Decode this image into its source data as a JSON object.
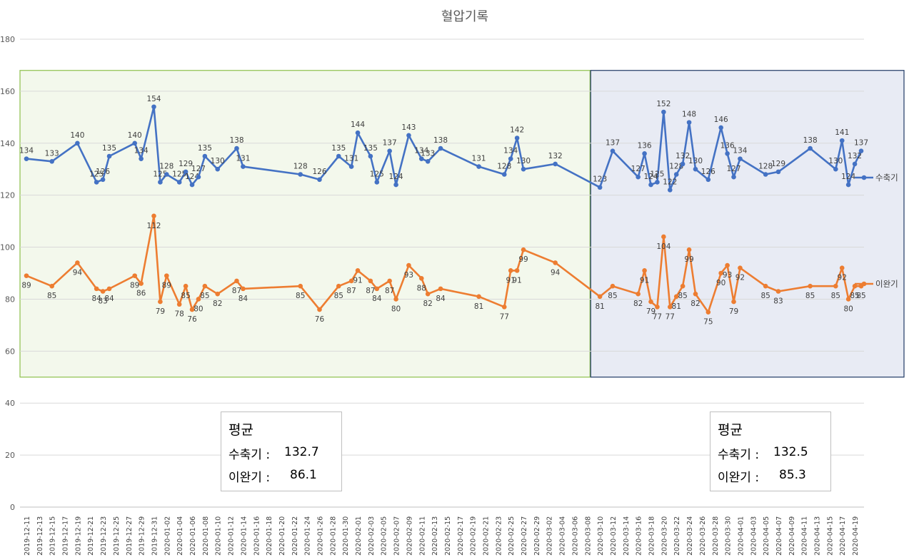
{
  "chart_data": {
    "type": "line",
    "title": "혈압기록",
    "ylim": [
      0,
      180
    ],
    "yticks": [
      0,
      20,
      40,
      60,
      80,
      100,
      120,
      140,
      160,
      180
    ],
    "x_start": "2019-12-11",
    "x_end": "2020-04-20",
    "x_tick_labels": [
      "2019-12-11",
      "2019-12-13",
      "2019-12-15",
      "2019-12-17",
      "2019-12-19",
      "2019-12-21",
      "2019-12-23",
      "2019-12-25",
      "2019-12-27",
      "2019-12-29",
      "2019-12-31",
      "2020-01-02",
      "2020-01-04",
      "2020-01-06",
      "2020-01-08",
      "2020-01-10",
      "2020-01-12",
      "2020-01-14",
      "2020-01-16",
      "2020-01-18",
      "2020-01-20",
      "2020-01-22",
      "2020-01-24",
      "2020-01-26",
      "2020-01-28",
      "2020-01-30",
      "2020-02-01",
      "2020-02-03",
      "2020-02-05",
      "2020-02-07",
      "2020-02-09",
      "2020-02-11",
      "2020-02-13",
      "2020-02-15",
      "2020-02-17",
      "2020-02-19",
      "2020-02-21",
      "2020-02-23",
      "2020-02-25",
      "2020-02-27",
      "2020-02-29",
      "2020-03-02",
      "2020-03-04",
      "2020-03-06",
      "2020-03-08",
      "2020-03-10",
      "2020-03-12",
      "2020-03-14",
      "2020-03-16",
      "2020-03-18",
      "2020-03-20",
      "2020-03-22",
      "2020-03-24",
      "2020-03-26",
      "2020-03-28",
      "2020-03-30",
      "2020-04-01",
      "2020-04-03",
      "2020-04-05",
      "2020-04-07",
      "2020-04-09",
      "2020-04-11",
      "2020-04-13",
      "2020-04-15",
      "2020-04-17",
      "2020-04-19"
    ],
    "legend_position": "right",
    "grid": true,
    "series": [
      {
        "name": "수축기",
        "color": "#4472C4",
        "points": [
          [
            "2019-12-11",
            134
          ],
          [
            "2019-12-15",
            133
          ],
          [
            "2019-12-19",
            140
          ],
          [
            "2019-12-22",
            125
          ],
          [
            "2019-12-23",
            126
          ],
          [
            "2019-12-24",
            135
          ],
          [
            "2019-12-28",
            140
          ],
          [
            "2019-12-29",
            134
          ],
          [
            "2019-12-31",
            154
          ],
          [
            "2020-01-01",
            125
          ],
          [
            "2020-01-02",
            128
          ],
          [
            "2020-01-04",
            125
          ],
          [
            "2020-01-05",
            129
          ],
          [
            "2020-01-06",
            124
          ],
          [
            "2020-01-07",
            127
          ],
          [
            "2020-01-08",
            135
          ],
          [
            "2020-01-10",
            130
          ],
          [
            "2020-01-13",
            138
          ],
          [
            "2020-01-14",
            131
          ],
          [
            "2020-01-23",
            128
          ],
          [
            "2020-01-26",
            126
          ],
          [
            "2020-01-29",
            135
          ],
          [
            "2020-01-31",
            131
          ],
          [
            "2020-02-01",
            144
          ],
          [
            "2020-02-03",
            135
          ],
          [
            "2020-02-04",
            125
          ],
          [
            "2020-02-06",
            137
          ],
          [
            "2020-02-07",
            124
          ],
          [
            "2020-02-09",
            143
          ],
          [
            "2020-02-11",
            134
          ],
          [
            "2020-02-12",
            133
          ],
          [
            "2020-02-14",
            138
          ],
          [
            "2020-02-20",
            131
          ],
          [
            "2020-02-24",
            128
          ],
          [
            "2020-02-25",
            134
          ],
          [
            "2020-02-26",
            142
          ],
          [
            "2020-02-27",
            130
          ],
          [
            "2020-03-03",
            132
          ],
          [
            "2020-03-10",
            123
          ],
          [
            "2020-03-12",
            137
          ],
          [
            "2020-03-16",
            127
          ],
          [
            "2020-03-17",
            136
          ],
          [
            "2020-03-18",
            124
          ],
          [
            "2020-03-19",
            125
          ],
          [
            "2020-03-20",
            152
          ],
          [
            "2020-03-21",
            122
          ],
          [
            "2020-03-22",
            128
          ],
          [
            "2020-03-23",
            132
          ],
          [
            "2020-03-24",
            148
          ],
          [
            "2020-03-25",
            130
          ],
          [
            "2020-03-27",
            126
          ],
          [
            "2020-03-29",
            146
          ],
          [
            "2020-03-30",
            136
          ],
          [
            "2020-03-31",
            127
          ],
          [
            "2020-04-01",
            134
          ],
          [
            "2020-04-05",
            128
          ],
          [
            "2020-04-07",
            129
          ],
          [
            "2020-04-12",
            138
          ],
          [
            "2020-04-16",
            130
          ],
          [
            "2020-04-17",
            141
          ],
          [
            "2020-04-18",
            124
          ],
          [
            "2020-04-19",
            132
          ],
          [
            "2020-04-20",
            137
          ]
        ]
      },
      {
        "name": "이완기",
        "color": "#ED7D31",
        "points": [
          [
            "2019-12-11",
            89
          ],
          [
            "2019-12-15",
            85
          ],
          [
            "2019-12-19",
            94
          ],
          [
            "2019-12-22",
            84
          ],
          [
            "2019-12-23",
            83
          ],
          [
            "2019-12-24",
            84
          ],
          [
            "2019-12-28",
            89
          ],
          [
            "2019-12-29",
            86
          ],
          [
            "2019-12-31",
            112
          ],
          [
            "2020-01-01",
            79
          ],
          [
            "2020-01-02",
            89
          ],
          [
            "2020-01-04",
            78
          ],
          [
            "2020-01-05",
            85
          ],
          [
            "2020-01-06",
            76
          ],
          [
            "2020-01-07",
            80
          ],
          [
            "2020-01-08",
            85
          ],
          [
            "2020-01-10",
            82
          ],
          [
            "2020-01-13",
            87
          ],
          [
            "2020-01-14",
            84
          ],
          [
            "2020-01-23",
            85
          ],
          [
            "2020-01-26",
            76
          ],
          [
            "2020-01-29",
            85
          ],
          [
            "2020-01-31",
            87
          ],
          [
            "2020-02-01",
            91
          ],
          [
            "2020-02-03",
            87
          ],
          [
            "2020-02-04",
            84
          ],
          [
            "2020-02-06",
            87
          ],
          [
            "2020-02-07",
            80
          ],
          [
            "2020-02-09",
            93
          ],
          [
            "2020-02-11",
            88
          ],
          [
            "2020-02-12",
            82
          ],
          [
            "2020-02-14",
            84
          ],
          [
            "2020-02-20",
            81
          ],
          [
            "2020-02-24",
            77
          ],
          [
            "2020-02-25",
            91
          ],
          [
            "2020-02-26",
            91
          ],
          [
            "2020-02-27",
            99
          ],
          [
            "2020-03-03",
            94
          ],
          [
            "2020-03-10",
            81
          ],
          [
            "2020-03-12",
            85
          ],
          [
            "2020-03-16",
            82
          ],
          [
            "2020-03-17",
            91
          ],
          [
            "2020-03-18",
            79
          ],
          [
            "2020-03-19",
            77
          ],
          [
            "2020-03-20",
            104
          ],
          [
            "2020-03-21",
            77
          ],
          [
            "2020-03-22",
            81
          ],
          [
            "2020-03-23",
            85
          ],
          [
            "2020-03-24",
            99
          ],
          [
            "2020-03-25",
            82
          ],
          [
            "2020-03-27",
            75
          ],
          [
            "2020-03-29",
            90
          ],
          [
            "2020-03-30",
            93
          ],
          [
            "2020-03-31",
            79
          ],
          [
            "2020-04-01",
            92
          ],
          [
            "2020-04-05",
            85
          ],
          [
            "2020-04-07",
            83
          ],
          [
            "2020-04-12",
            85
          ],
          [
            "2020-04-16",
            85
          ],
          [
            "2020-04-17",
            92
          ],
          [
            "2020-04-18",
            80
          ],
          [
            "2020-04-19",
            85
          ],
          [
            "2020-04-20",
            85
          ]
        ]
      }
    ],
    "highlight_regions": [
      {
        "from": "2019-12-11",
        "to": "2020-03-08",
        "ymin": 50,
        "ymax": 168,
        "fill": "#F3F8EC",
        "stroke": "#8DC04B"
      },
      {
        "from": "2020-03-09",
        "to": "2020-04-21",
        "ymin": 50,
        "ymax": 168,
        "fill": "#E8EBF4",
        "stroke": "#1F3864"
      }
    ]
  },
  "summary_boxes": [
    {
      "title": "평균",
      "systolic_label": "수축기 :",
      "systolic_value": "132.7",
      "diastolic_label": "이완기 :",
      "diastolic_value": "86.1"
    },
    {
      "title": "평균",
      "systolic_label": "수축기 :",
      "systolic_value": "132.5",
      "diastolic_label": "이완기 :",
      "diastolic_value": "85.3"
    }
  ]
}
